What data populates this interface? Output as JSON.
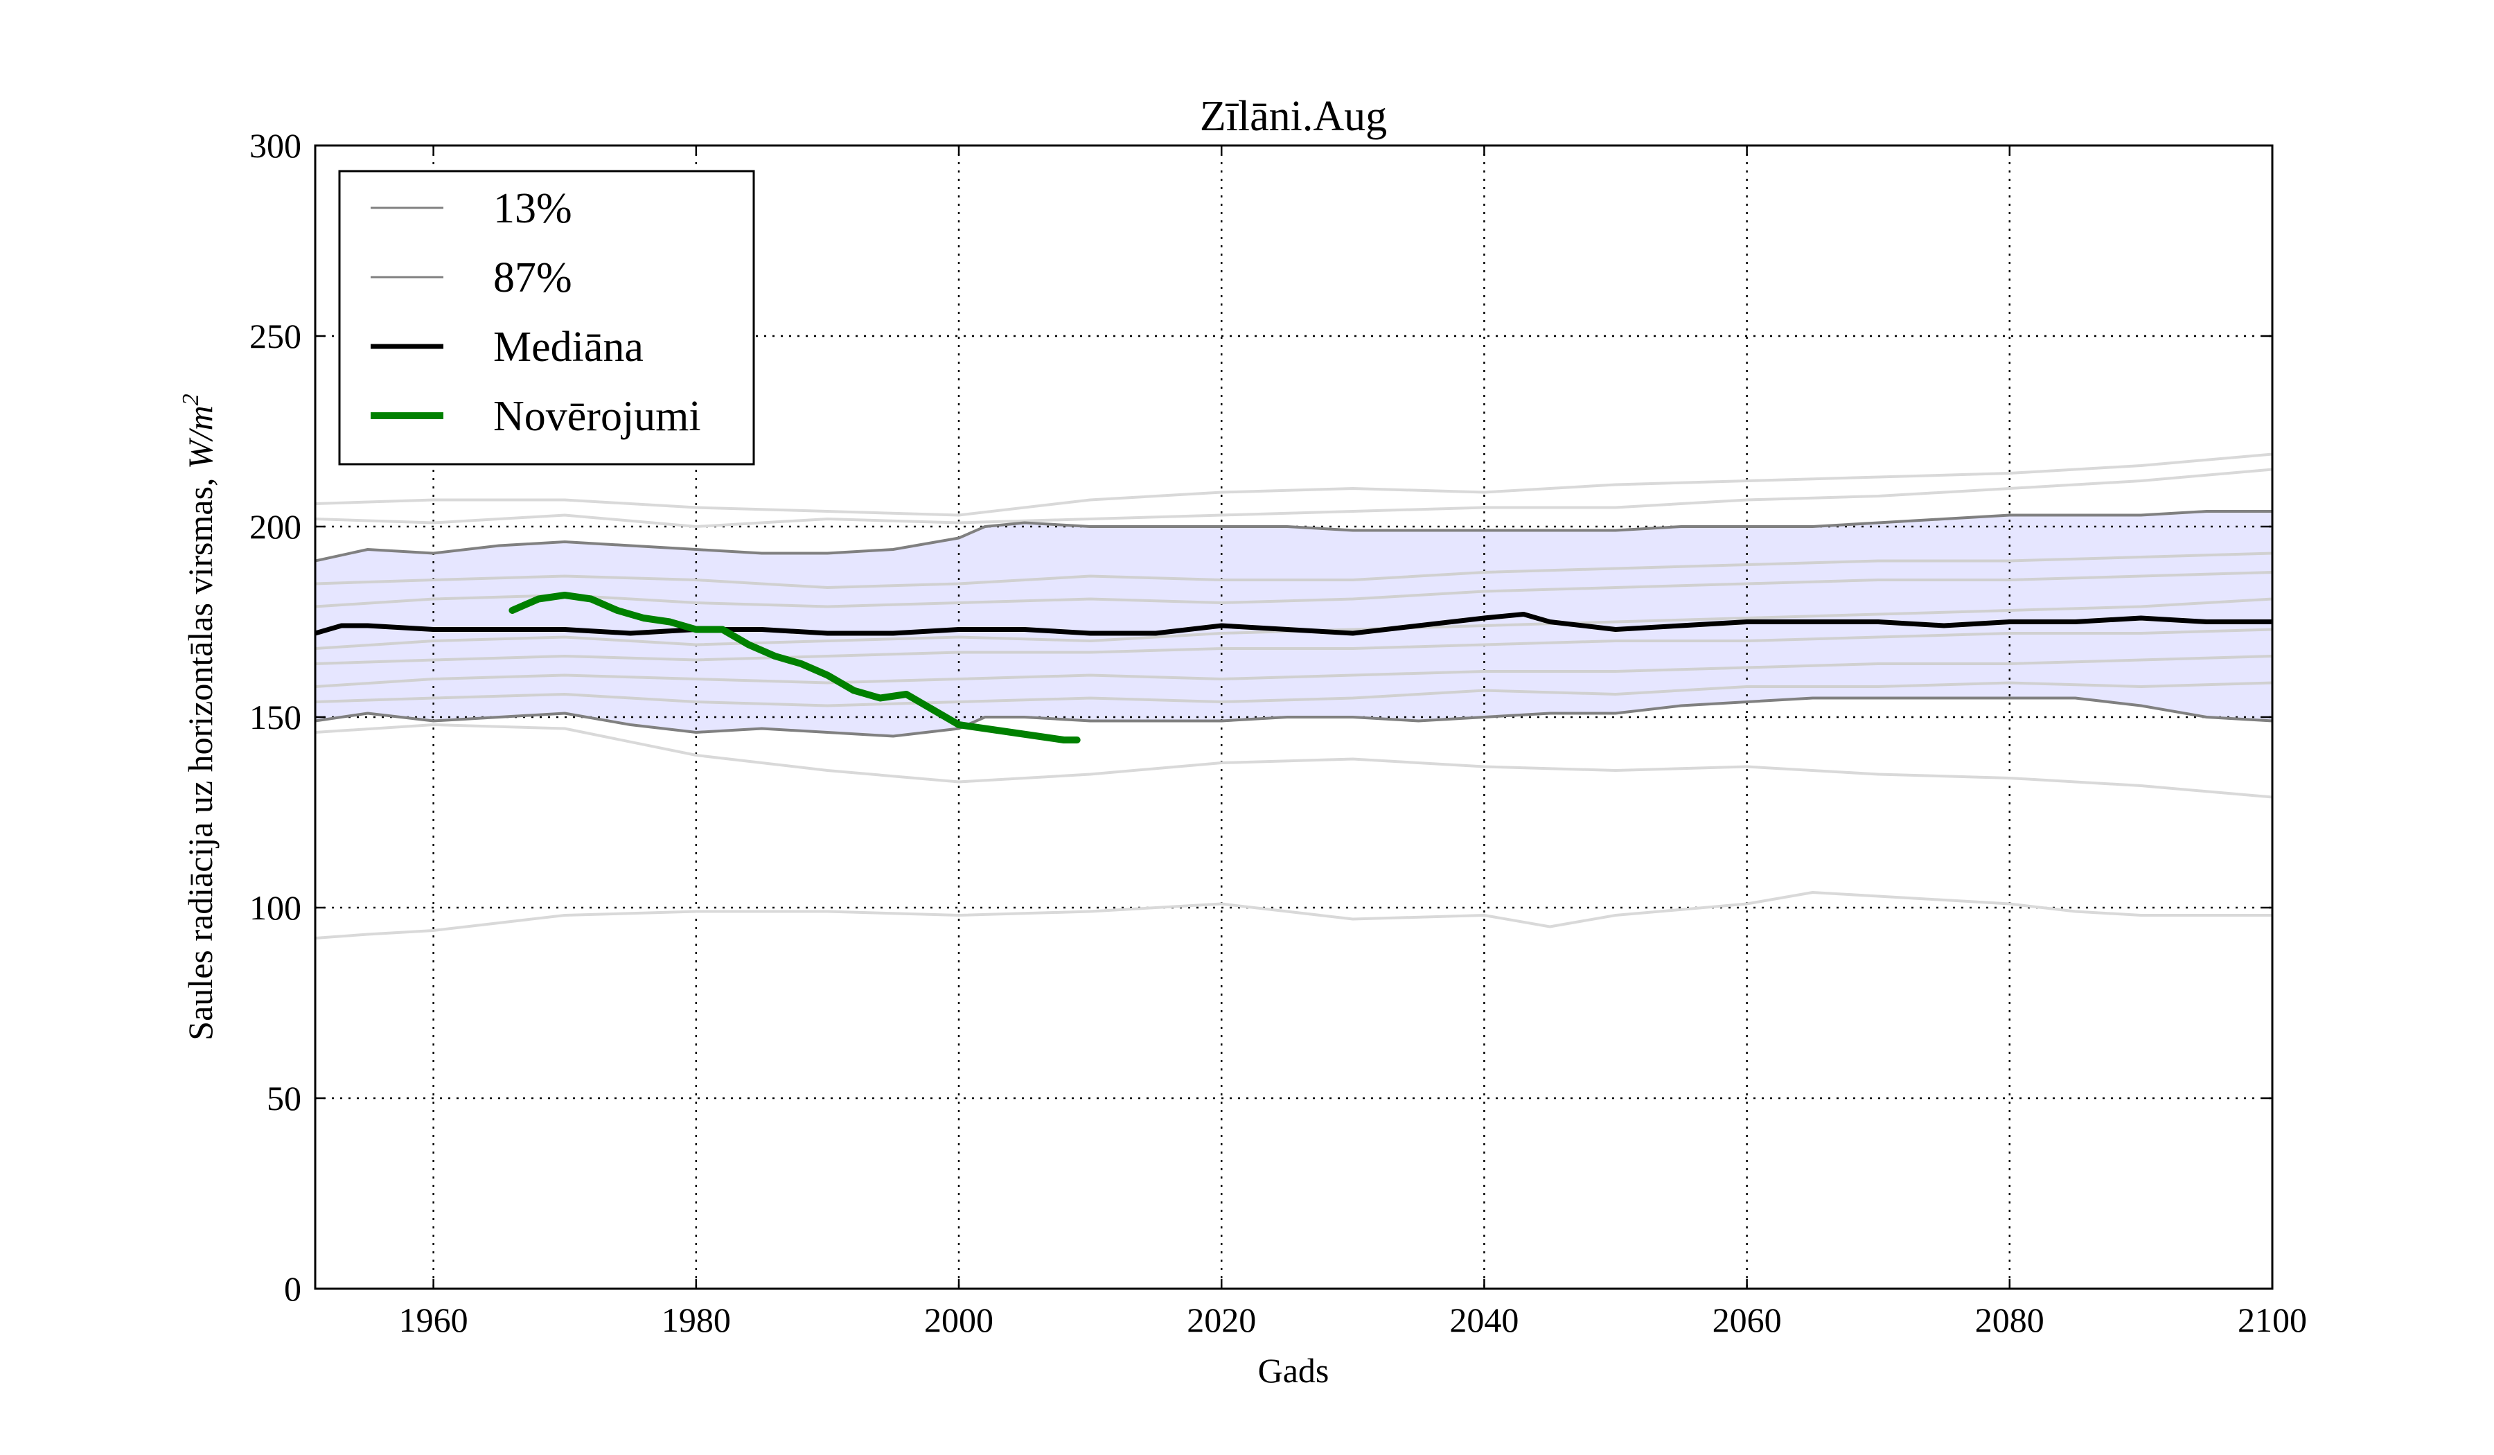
{
  "chart_data": {
    "type": "line",
    "title": "Zīlāni.Aug",
    "xlabel": "Gads",
    "ylabel": "Saules radiācija uz horizontālas virsmas, W/m²",
    "ylabel_parts": {
      "text": "Saules radiācija uz horizontālas virsmas, ",
      "unit_base": "W/m",
      "unit_exp": "2"
    },
    "xlim": [
      1951,
      2100
    ],
    "ylim": [
      0,
      300
    ],
    "xticks": [
      "1960",
      "1980",
      "2000",
      "2020",
      "2040",
      "2060",
      "2080",
      "2100"
    ],
    "yticks": [
      "0",
      "50",
      "100",
      "150",
      "200",
      "250",
      "300"
    ],
    "grid": true,
    "legend_position": "top-left",
    "legend": [
      {
        "label": "13%",
        "color": "#808080",
        "style": "thin"
      },
      {
        "label": "87%",
        "color": "#808080",
        "style": "thin"
      },
      {
        "label": "Mediāna",
        "color": "#000000",
        "style": "medium"
      },
      {
        "label": "Novērojumi",
        "color": "#008000",
        "style": "thick"
      }
    ],
    "band": {
      "color": "#e6e6ff",
      "x": [
        1951,
        1955,
        1960,
        1965,
        1970,
        1975,
        1980,
        1985,
        1990,
        1995,
        2000,
        2002,
        2005,
        2010,
        2015,
        2020,
        2025,
        2030,
        2035,
        2040,
        2045,
        2050,
        2055,
        2060,
        2065,
        2070,
        2075,
        2080,
        2085,
        2090,
        2095,
        2100
      ],
      "lower": [
        149,
        151,
        149,
        150,
        151,
        148,
        146,
        147,
        146,
        145,
        147,
        150,
        150,
        149,
        149,
        149,
        150,
        150,
        149,
        150,
        151,
        151,
        153,
        154,
        155,
        155,
        155,
        155,
        155,
        153,
        150,
        149
      ],
      "upper": [
        191,
        194,
        193,
        195,
        196,
        195,
        194,
        193,
        193,
        194,
        197,
        200,
        201,
        200,
        200,
        200,
        200,
        199,
        199,
        199,
        199,
        199,
        200,
        200,
        200,
        201,
        202,
        203,
        203,
        203,
        204,
        204
      ]
    },
    "series": [
      {
        "name": "13%",
        "color": "#808080",
        "x": [
          1951,
          1955,
          1960,
          1965,
          1970,
          1975,
          1980,
          1985,
          1990,
          1995,
          2000,
          2002,
          2005,
          2010,
          2015,
          2020,
          2025,
          2030,
          2035,
          2040,
          2045,
          2050,
          2055,
          2060,
          2065,
          2070,
          2075,
          2080,
          2085,
          2090,
          2095,
          2100
        ],
        "values": [
          149,
          151,
          149,
          150,
          151,
          148,
          146,
          147,
          146,
          145,
          147,
          150,
          150,
          149,
          149,
          149,
          150,
          150,
          149,
          150,
          151,
          151,
          153,
          154,
          155,
          155,
          155,
          155,
          155,
          153,
          150,
          149
        ]
      },
      {
        "name": "87%",
        "color": "#808080",
        "x": [
          1951,
          1955,
          1960,
          1965,
          1970,
          1975,
          1980,
          1985,
          1990,
          1995,
          2000,
          2002,
          2005,
          2010,
          2015,
          2020,
          2025,
          2030,
          2035,
          2040,
          2045,
          2050,
          2055,
          2060,
          2065,
          2070,
          2075,
          2080,
          2085,
          2090,
          2095,
          2100
        ],
        "values": [
          191,
          194,
          193,
          195,
          196,
          195,
          194,
          193,
          193,
          194,
          197,
          200,
          201,
          200,
          200,
          200,
          200,
          199,
          199,
          199,
          199,
          199,
          200,
          200,
          200,
          201,
          202,
          203,
          203,
          203,
          204,
          204
        ]
      },
      {
        "name": "Mediāna",
        "color": "#000000",
        "x": [
          1951,
          1953,
          1955,
          1960,
          1965,
          1970,
          1975,
          1980,
          1985,
          1990,
          1995,
          2000,
          2005,
          2010,
          2015,
          2020,
          2025,
          2030,
          2035,
          2040,
          2043,
          2045,
          2050,
          2055,
          2060,
          2065,
          2070,
          2075,
          2080,
          2085,
          2090,
          2095,
          2100
        ],
        "values": [
          172,
          174,
          174,
          173,
          173,
          173,
          172,
          173,
          173,
          172,
          172,
          173,
          173,
          172,
          172,
          174,
          173,
          172,
          174,
          176,
          177,
          175,
          173,
          174,
          175,
          175,
          175,
          174,
          175,
          175,
          176,
          175,
          175
        ]
      },
      {
        "name": "Novērojumi",
        "color": "#008000",
        "x": [
          1966,
          1968,
          1970,
          1972,
          1974,
          1976,
          1978,
          1980,
          1982,
          1984,
          1986,
          1988,
          1990,
          1992,
          1994,
          1996,
          1998,
          2000,
          2002,
          2004,
          2006,
          2008,
          2009
        ],
        "values": [
          178,
          181,
          182,
          181,
          178,
          176,
          175,
          173,
          173,
          169,
          166,
          164,
          161,
          157,
          155,
          156,
          152,
          148,
          147,
          146,
          145,
          144,
          144
        ]
      }
    ],
    "ensemble_members": [
      {
        "color": "#d9d9d9",
        "x": [
          1951,
          1960,
          1970,
          1980,
          1990,
          2000,
          2010,
          2020,
          2030,
          2040,
          2050,
          2060,
          2070,
          2080,
          2090,
          2100
        ],
        "values": [
          206,
          207,
          207,
          205,
          204,
          203,
          207,
          209,
          210,
          209,
          211,
          212,
          213,
          214,
          216,
          219
        ]
      },
      {
        "color": "#d9d9d9",
        "x": [
          1951,
          1960,
          1970,
          1980,
          1990,
          2000,
          2010,
          2020,
          2030,
          2040,
          2050,
          2060,
          2070,
          2080,
          2090,
          2100
        ],
        "values": [
          202,
          201,
          203,
          200,
          202,
          201,
          202,
          203,
          204,
          205,
          205,
          207,
          208,
          210,
          212,
          215
        ]
      },
      {
        "color": "#d0d0d0",
        "x": [
          1951,
          1960,
          1970,
          1980,
          1990,
          2000,
          2010,
          2020,
          2030,
          2040,
          2050,
          2060,
          2070,
          2080,
          2090,
          2100
        ],
        "values": [
          185,
          186,
          187,
          186,
          184,
          185,
          187,
          186,
          186,
          188,
          189,
          190,
          191,
          191,
          192,
          193
        ]
      },
      {
        "color": "#d0d0d0",
        "x": [
          1951,
          1960,
          1970,
          1980,
          1990,
          2000,
          2010,
          2020,
          2030,
          2040,
          2050,
          2060,
          2070,
          2080,
          2090,
          2100
        ],
        "values": [
          179,
          181,
          182,
          180,
          179,
          180,
          181,
          180,
          181,
          183,
          184,
          185,
          186,
          186,
          187,
          188
        ]
      },
      {
        "color": "#d0d0d0",
        "x": [
          1951,
          1960,
          1970,
          1980,
          1990,
          2000,
          2010,
          2020,
          2030,
          2040,
          2050,
          2060,
          2070,
          2080,
          2090,
          2100
        ],
        "values": [
          168,
          170,
          171,
          169,
          170,
          171,
          170,
          172,
          173,
          174,
          175,
          176,
          177,
          178,
          179,
          181
        ]
      },
      {
        "color": "#d0d0d0",
        "x": [
          1951,
          1960,
          1970,
          1980,
          1990,
          2000,
          2010,
          2020,
          2030,
          2040,
          2050,
          2060,
          2070,
          2080,
          2090,
          2100
        ],
        "values": [
          164,
          165,
          166,
          165,
          166,
          167,
          167,
          168,
          168,
          169,
          170,
          170,
          171,
          172,
          172,
          173
        ]
      },
      {
        "color": "#d0d0d0",
        "x": [
          1951,
          1960,
          1970,
          1980,
          1990,
          2000,
          2010,
          2020,
          2030,
          2040,
          2050,
          2060,
          2070,
          2080,
          2090,
          2100
        ],
        "values": [
          158,
          160,
          161,
          160,
          159,
          160,
          161,
          160,
          161,
          162,
          162,
          163,
          164,
          164,
          165,
          166
        ]
      },
      {
        "color": "#d0d0d0",
        "x": [
          1951,
          1960,
          1970,
          1980,
          1990,
          2000,
          2010,
          2020,
          2030,
          2040,
          2050,
          2060,
          2070,
          2080,
          2090,
          2100
        ],
        "values": [
          154,
          155,
          156,
          154,
          153,
          154,
          155,
          154,
          155,
          157,
          156,
          158,
          158,
          159,
          158,
          159
        ]
      },
      {
        "color": "#d9d9d9",
        "x": [
          1951,
          1960,
          1970,
          1980,
          1990,
          2000,
          2010,
          2020,
          2030,
          2040,
          2050,
          2060,
          2070,
          2080,
          2090,
          2100
        ],
        "values": [
          146,
          148,
          147,
          140,
          136,
          133,
          135,
          138,
          139,
          137,
          136,
          137,
          135,
          134,
          132,
          129
        ]
      },
      {
        "color": "#d9d9d9",
        "x": [
          1951,
          1955,
          1960,
          1965,
          1970,
          1980,
          1990,
          2000,
          2010,
          2020,
          2030,
          2040,
          2045,
          2050,
          2060,
          2065,
          2070,
          2080,
          2085,
          2090,
          2100
        ],
        "values": [
          92,
          93,
          94,
          96,
          98,
          99,
          99,
          98,
          99,
          101,
          97,
          98,
          95,
          98,
          101,
          104,
          103,
          101,
          99,
          98,
          98
        ]
      }
    ]
  }
}
